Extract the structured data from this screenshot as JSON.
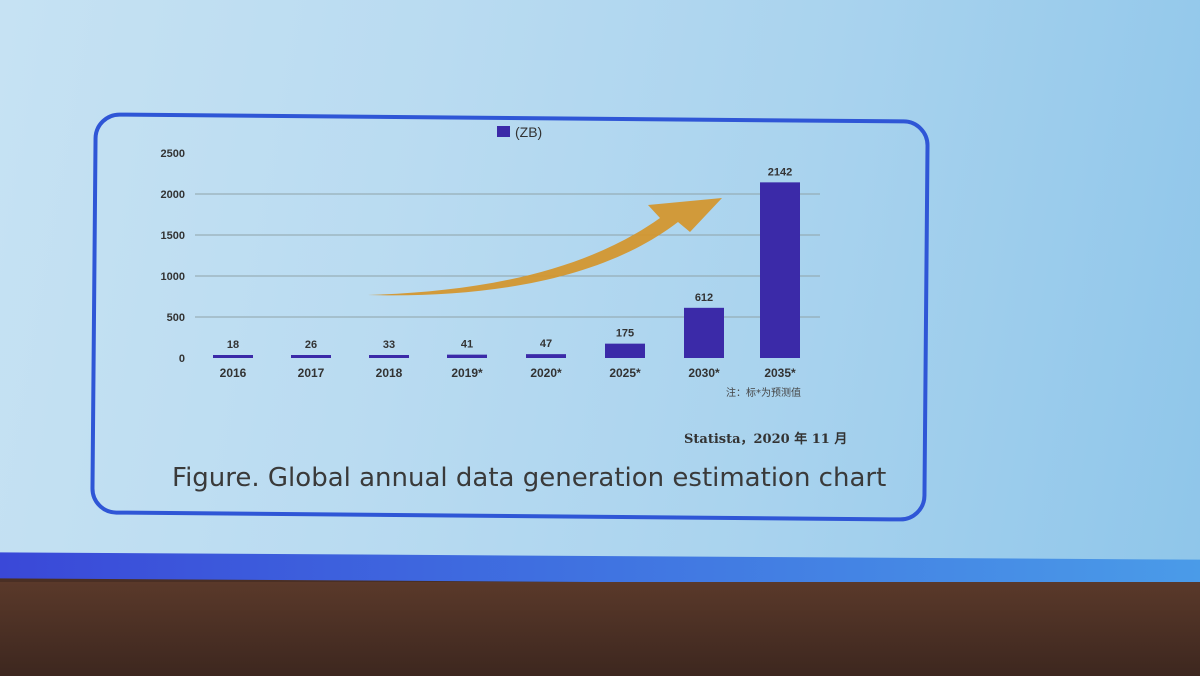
{
  "chart_data": {
    "type": "bar",
    "legend": "(ZB)",
    "categories": [
      "2016",
      "2017",
      "2018",
      "2019*",
      "2020*",
      "2025*",
      "2030*",
      "2035*"
    ],
    "values": [
      18,
      26,
      33,
      41,
      47,
      175,
      612,
      2142
    ],
    "value_labels": [
      "18",
      "26",
      "33",
      "41",
      "47",
      "175",
      "612",
      "2142"
    ],
    "yticks": [
      "0",
      "500",
      "1000",
      "1500",
      "2000",
      "2500"
    ],
    "ylim": [
      0,
      2500
    ],
    "grid": true,
    "legend_placement": "top-center",
    "note": "注：标*为预测值",
    "source": "Statista，2020 年 11 月",
    "caption": "Figure. Global annual data generation estimation chart",
    "colors": {
      "bar": "#3b2aa8",
      "arrow": "#d4952a",
      "grid": "#8fa3a8"
    }
  }
}
